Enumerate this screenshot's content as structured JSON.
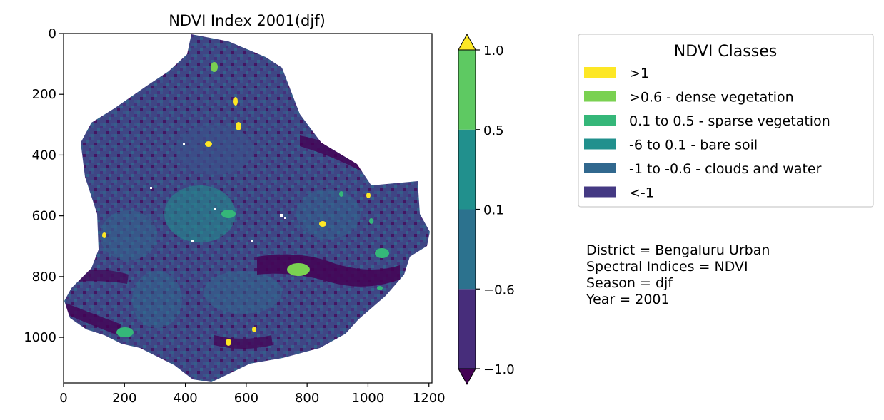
{
  "chart_data": {
    "type": "heatmap",
    "title": "NDVI Index 2001(djf)",
    "xlabel": "",
    "ylabel": "",
    "xlim": [
      0,
      1210
    ],
    "ylim": [
      1150,
      0
    ],
    "x_ticks": [
      "0",
      "200",
      "400",
      "600",
      "800",
      "1000",
      "1200"
    ],
    "y_ticks": [
      "0",
      "200",
      "400",
      "600",
      "800",
      "1000"
    ],
    "x_tick_values": [
      0,
      200,
      400,
      600,
      800,
      1000,
      1200
    ],
    "y_tick_values": [
      0,
      200,
      400,
      600,
      800,
      1000
    ],
    "colorbar": {
      "ticks": [
        "1.0",
        "0.5",
        "0.1",
        "−0.6",
        "−1.0"
      ],
      "boundaries": [
        -1.0,
        -0.6,
        0.1,
        0.5,
        1.0
      ],
      "extend": "both",
      "colors": [
        "#440154",
        "#3b528b",
        "#31688e",
        "#21908d",
        "#35b779",
        "#7ad151",
        "#fde725"
      ],
      "over_color": "#fde725",
      "under_color": "#440154"
    },
    "legend": {
      "title": "NDVI Classes",
      "placement": "upper-right",
      "entries": [
        {
          "label": ">1",
          "color": "#fde725"
        },
        {
          "label": ">0.6 - dense vegetation",
          "color": "#7ad151"
        },
        {
          "label": "0.1 to 0.5 - sparse vegetation",
          "color": "#35b779"
        },
        {
          "label": "-6 to 0.1 - bare soil",
          "color": "#21908d"
        },
        {
          "label": "-1 to -0.6 - clouds and water",
          "color": "#31688e"
        },
        {
          "label": "<-1",
          "color": "#443983"
        }
      ]
    },
    "annotations": [
      "District = Bengaluru Urban",
      "Spectral Indices = NDVI",
      "Season = djf",
      "Year = 2001"
    ],
    "grid": false
  }
}
